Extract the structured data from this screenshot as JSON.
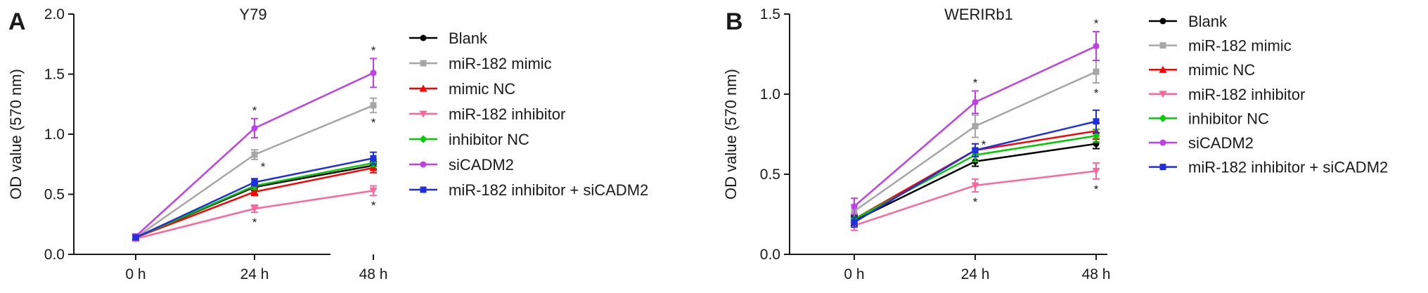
{
  "chart_data": [
    {
      "type": "line",
      "panel": "A",
      "title": "Y79",
      "xlabel": "",
      "ylabel": "OD value (570 nm)",
      "categories": [
        "0 h",
        "24 h",
        "48 h"
      ],
      "ylim": [
        0,
        2.0
      ],
      "yticks": [
        "0.0",
        "0.5",
        "1.0",
        "1.5",
        "2.0"
      ],
      "grid": false,
      "legend": "right",
      "series": [
        {
          "name": "Blank",
          "color": "#000000",
          "marker": "circle",
          "values": [
            0.14,
            0.56,
            0.74
          ],
          "errors": [
            0.02,
            0.03,
            0.03
          ]
        },
        {
          "name": "miR-182 mimic",
          "color": "#a6a6a6",
          "marker": "square",
          "values": [
            0.14,
            0.83,
            1.24
          ],
          "errors": [
            0.02,
            0.04,
            0.06
          ]
        },
        {
          "name": "mimic NC",
          "color": "#ff0000",
          "marker": "triangle-up",
          "values": [
            0.14,
            0.52,
            0.72
          ],
          "errors": [
            0.02,
            0.03,
            0.04
          ]
        },
        {
          "name": "miR-182 inhibitor",
          "color": "#ff6699",
          "marker": "triangle-down",
          "values": [
            0.13,
            0.38,
            0.53
          ],
          "errors": [
            0.02,
            0.03,
            0.04
          ]
        },
        {
          "name": "inhibitor NC",
          "color": "#00cc00",
          "marker": "diamond",
          "values": [
            0.14,
            0.57,
            0.76
          ],
          "errors": [
            0.02,
            0.03,
            0.03
          ]
        },
        {
          "name": "siCADM2",
          "color": "#bf40e6",
          "marker": "circle",
          "values": [
            0.15,
            1.05,
            1.51
          ],
          "errors": [
            0.02,
            0.08,
            0.12
          ]
        },
        {
          "name": "miR-182 inhibitor + siCADM2",
          "color": "#1f2fe0",
          "marker": "square",
          "values": [
            0.14,
            0.6,
            0.8
          ],
          "errors": [
            0.02,
            0.03,
            0.05
          ]
        }
      ],
      "annotations": [
        {
          "text": "*",
          "series": "siCADM2",
          "x": "24 h",
          "side": "above"
        },
        {
          "text": "*",
          "series": "miR-182 mimic",
          "x": "24 h",
          "side": "below-right"
        },
        {
          "text": "*",
          "series": "miR-182 inhibitor",
          "x": "24 h",
          "side": "below"
        },
        {
          "text": "*",
          "series": "siCADM2",
          "x": "48 h",
          "side": "above"
        },
        {
          "text": "*",
          "series": "miR-182 mimic",
          "x": "48 h",
          "side": "below"
        },
        {
          "text": "*",
          "series": "miR-182 inhibitor",
          "x": "48 h",
          "side": "below"
        }
      ]
    },
    {
      "type": "line",
      "panel": "B",
      "title": "WERIRb1",
      "xlabel": "",
      "ylabel": "OD value (570 nm)",
      "categories": [
        "0 h",
        "24 h",
        "48 h"
      ],
      "ylim": [
        0,
        1.5
      ],
      "yticks": [
        "0.0",
        "0.5",
        "1.0",
        "1.5"
      ],
      "grid": false,
      "legend": "right",
      "series": [
        {
          "name": "Blank",
          "color": "#000000",
          "marker": "circle",
          "values": [
            0.21,
            0.58,
            0.69
          ],
          "errors": [
            0.03,
            0.03,
            0.03
          ]
        },
        {
          "name": "miR-182 mimic",
          "color": "#a6a6a6",
          "marker": "square",
          "values": [
            0.27,
            0.8,
            1.14
          ],
          "errors": [
            0.04,
            0.07,
            0.07
          ]
        },
        {
          "name": "mimic NC",
          "color": "#ff0000",
          "marker": "triangle-up",
          "values": [
            0.22,
            0.65,
            0.77
          ],
          "errors": [
            0.03,
            0.04,
            0.05
          ]
        },
        {
          "name": "miR-182 inhibitor",
          "color": "#ff6699",
          "marker": "triangle-down",
          "values": [
            0.18,
            0.43,
            0.52
          ],
          "errors": [
            0.03,
            0.04,
            0.05
          ]
        },
        {
          "name": "inhibitor NC",
          "color": "#00cc00",
          "marker": "diamond",
          "values": [
            0.22,
            0.62,
            0.74
          ],
          "errors": [
            0.03,
            0.04,
            0.04
          ]
        },
        {
          "name": "siCADM2",
          "color": "#bf40e6",
          "marker": "circle",
          "values": [
            0.3,
            0.95,
            1.3
          ],
          "errors": [
            0.05,
            0.07,
            0.09
          ]
        },
        {
          "name": "miR-182 inhibitor + siCADM2",
          "color": "#1f2fe0",
          "marker": "square",
          "values": [
            0.2,
            0.65,
            0.83
          ],
          "errors": [
            0.03,
            0.04,
            0.07
          ]
        }
      ],
      "annotations": [
        {
          "text": "*",
          "series": "siCADM2",
          "x": "24 h",
          "side": "above"
        },
        {
          "text": "*",
          "series": "miR-182 mimic",
          "x": "24 h",
          "side": "below-right"
        },
        {
          "text": "*",
          "series": "miR-182 inhibitor",
          "x": "24 h",
          "side": "below"
        },
        {
          "text": "*",
          "series": "siCADM2",
          "x": "48 h",
          "side": "above"
        },
        {
          "text": "*",
          "series": "miR-182 mimic",
          "x": "48 h",
          "side": "below"
        },
        {
          "text": "*",
          "series": "miR-182 inhibitor",
          "x": "48 h",
          "side": "below"
        }
      ]
    }
  ]
}
